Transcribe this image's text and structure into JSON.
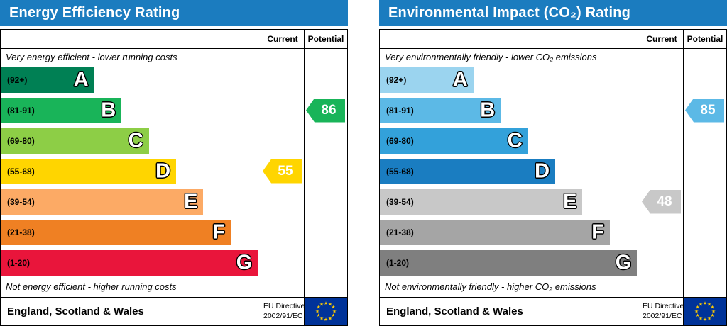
{
  "page": {
    "background": "#ffffff",
    "header_color": "#1b7cbf",
    "border_color": "#000000",
    "eu_flag": {
      "background": "#003399",
      "star_color": "#ffcc00"
    }
  },
  "icons": {
    "eu_star": "★"
  },
  "chart_data": [
    {
      "type": "bar",
      "title": "Energy Efficiency Rating",
      "columns": {
        "current": "Current",
        "potential": "Potential"
      },
      "top_note": "Very energy efficient - lower running costs",
      "bottom_note": "Not energy efficient - higher running costs",
      "bands": [
        {
          "grade": "A",
          "range": "(92+)",
          "color": "#008054",
          "width_pct": 36
        },
        {
          "grade": "B",
          "range": "(81-91)",
          "color": "#19b459",
          "width_pct": 46.5
        },
        {
          "grade": "C",
          "range": "(69-80)",
          "color": "#8dce46",
          "width_pct": 57
        },
        {
          "grade": "D",
          "range": "(55-68)",
          "color": "#ffd500",
          "width_pct": 67.5
        },
        {
          "grade": "E",
          "range": "(39-54)",
          "color": "#fcaa65",
          "width_pct": 78
        },
        {
          "grade": "F",
          "range": "(21-38)",
          "color": "#ef8023",
          "width_pct": 88.5
        },
        {
          "grade": "G",
          "range": "(1-20)",
          "color": "#e9153b",
          "width_pct": 99
        }
      ],
      "current": {
        "value": 55,
        "band": "D",
        "color": "#ffd500"
      },
      "potential": {
        "value": 86,
        "band": "B",
        "color": "#19b459"
      },
      "footer": {
        "region": "England, Scotland & Wales",
        "directive_line1": "EU Directive",
        "directive_line2": "2002/91/EC"
      }
    },
    {
      "type": "bar",
      "title": "Environmental Impact (CO₂) Rating",
      "columns": {
        "current": "Current",
        "potential": "Potential"
      },
      "top_note": "Very environmentally friendly - lower CO₂ emissions",
      "bottom_note": "Not environmentally friendly - higher CO₂ emissions",
      "bands": [
        {
          "grade": "A",
          "range": "(92+)",
          "color": "#9bd4ef",
          "width_pct": 36
        },
        {
          "grade": "B",
          "range": "(81-91)",
          "color": "#5cb9e6",
          "width_pct": 46.5
        },
        {
          "grade": "C",
          "range": "(69-80)",
          "color": "#33a1da",
          "width_pct": 57
        },
        {
          "grade": "D",
          "range": "(55-68)",
          "color": "#1a7dc1",
          "width_pct": 67.5
        },
        {
          "grade": "E",
          "range": "(39-54)",
          "color": "#c8c8c8",
          "width_pct": 78
        },
        {
          "grade": "F",
          "range": "(21-38)",
          "color": "#a5a5a5",
          "width_pct": 88.5
        },
        {
          "grade": "G",
          "range": "(1-20)",
          "color": "#7f7f7f",
          "width_pct": 99
        }
      ],
      "current": {
        "value": 48,
        "band": "E",
        "color": "#c8c8c8"
      },
      "potential": {
        "value": 85,
        "band": "B",
        "color": "#5cb9e6"
      },
      "footer": {
        "region": "England, Scotland & Wales",
        "directive_line1": "EU Directive",
        "directive_line2": "2002/91/EC"
      }
    }
  ]
}
